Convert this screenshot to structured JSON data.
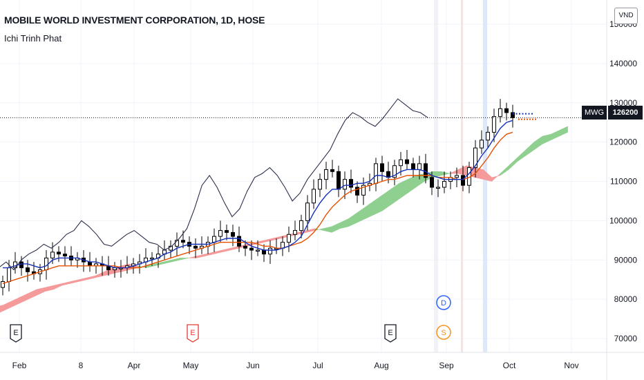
{
  "header": {
    "title": "MOBILE WORLD INVESTMENT CORPORATION, 1D, HOSE",
    "indicator": "Ichi Trinh Phat"
  },
  "currency_button": "VND",
  "price_tag": {
    "symbol": "MWG",
    "price": "126200"
  },
  "colors": {
    "kijun": "#e65100",
    "tenkan": "#1531b8",
    "chikou": "#2a2e4a",
    "cloud_bull": "#8fcf8f",
    "cloud_bear": "#f59a9a",
    "candle": "#000000",
    "event_earnings": "#131722",
    "event_dividend": "#2962ff",
    "event_split": "#f7931a",
    "event_earnings_red": "#e53935"
  },
  "chart_data": {
    "type": "candlestick",
    "title": "MOBILE WORLD INVESTMENT CORPORATION, 1D, HOSE",
    "indicator": "Ichi Trinh Phat",
    "ylim": [
      62000,
      150000
    ],
    "y_ticks": [
      "70000",
      "80000",
      "90000",
      "100000",
      "110000",
      "120000",
      "130000",
      "140000",
      "150000"
    ],
    "x_ticks": [
      "Feb",
      "8",
      "Apr",
      "May",
      "Jun",
      "Jul",
      "Aug",
      "Sep",
      "Oct",
      "Nov"
    ],
    "grid": true,
    "last_price": 126200,
    "close": [
      84500,
      88000,
      89500,
      88000,
      87000,
      86500,
      87500,
      90500,
      92000,
      91500,
      91000,
      90000,
      90500,
      89500,
      88500,
      89000,
      88500,
      87500,
      88000,
      88000,
      88500,
      89000,
      89500,
      90500,
      90500,
      91500,
      92500,
      93500,
      95000,
      94500,
      93500,
      93000,
      93500,
      94500,
      96000,
      97500,
      97000,
      96000,
      93500,
      93000,
      92500,
      92500,
      91500,
      93000,
      93000,
      94500,
      96500,
      97500,
      100000,
      104500,
      108000,
      110500,
      113000,
      112500,
      108000,
      110500,
      108500,
      106500,
      109000,
      109500,
      114500,
      112500,
      111000,
      114000,
      115500,
      114500,
      113000,
      114500,
      111000,
      108500,
      108500,
      110000,
      111000,
      111500,
      109000,
      113500,
      118500,
      120500,
      122500,
      126500,
      128500,
      127500,
      126200
    ],
    "series": [
      {
        "name": "Tenkan",
        "values": [
          88000,
          88000,
          88500,
          89000,
          89000,
          88500,
          88000,
          88500,
          90000,
          90500,
          90500,
          90500,
          90500,
          90000,
          89500,
          89500,
          89000,
          88500,
          88000,
          88000,
          88000,
          88500,
          89000,
          89500,
          90000,
          90500,
          91500,
          92000,
          93000,
          93500,
          94000,
          94000,
          94000,
          94000,
          94500,
          95000,
          95500,
          95500,
          95500,
          94500,
          93500,
          93000,
          92500,
          92500,
          92500,
          93000,
          93500,
          94500,
          96000,
          99000,
          102000,
          104500,
          106500,
          108000,
          108000,
          109000,
          109000,
          109500,
          109500,
          110000,
          111500,
          111500,
          111000,
          111500,
          112500,
          113000,
          113000,
          113000,
          112500,
          111500,
          111000,
          110500,
          110500,
          110500,
          110500,
          112000,
          114000,
          116500,
          118500,
          121000,
          123500,
          125000,
          125500
        ]
      },
      {
        "name": "Kijun",
        "values": [
          84000,
          84500,
          85000,
          85500,
          86000,
          86500,
          87000,
          87500,
          88000,
          88500,
          88500,
          88500,
          88500,
          88500,
          88500,
          88500,
          88500,
          88500,
          88500,
          88000,
          88000,
          88000,
          88000,
          88500,
          89000,
          89500,
          90000,
          90500,
          91000,
          91500,
          92000,
          92500,
          93000,
          93500,
          94000,
          94500,
          94500,
          94500,
          94500,
          94500,
          94500,
          94000,
          93500,
          93500,
          93000,
          93000,
          93500,
          94000,
          94500,
          95500,
          97000,
          99000,
          101500,
          103500,
          105000,
          106500,
          107500,
          108000,
          108500,
          109000,
          109500,
          110000,
          110500,
          110500,
          111000,
          111500,
          111500,
          111500,
          111500,
          111500,
          111000,
          111000,
          111000,
          110500,
          110500,
          111000,
          112000,
          114000,
          116000,
          118500,
          120500,
          122000,
          122500
        ]
      },
      {
        "name": "Chikou",
        "values": [
          88000,
          89500,
          87500,
          90000,
          91500,
          92500,
          94000,
          93000,
          94500,
          96500,
          97500,
          100000,
          98500,
          96500,
          94000,
          93500,
          95000,
          96500,
          97500,
          96000,
          94500,
          94000,
          92500,
          93500,
          95500,
          98000,
          103000,
          109000,
          111500,
          108500,
          104500,
          101000,
          103000,
          107500,
          111000,
          112000,
          113500,
          111500,
          108500,
          105000,
          107000,
          110500,
          113000,
          115500,
          118000,
          122000,
          125500,
          127500,
          126500,
          125000,
          124000,
          126000,
          128500,
          131000,
          129500,
          128000,
          127500,
          126200
        ]
      },
      {
        "name": "Senkou A",
        "values": [
          76000,
          77000,
          78000,
          79000,
          80000,
          81000,
          82000,
          82500,
          83500,
          84000,
          84500,
          85000,
          85500,
          86000,
          86500,
          87000,
          87500,
          88000,
          88500,
          89000,
          89500,
          90000,
          90500,
          90500,
          90500,
          91000,
          91500,
          92000,
          92500,
          93000,
          93500,
          94000,
          94500,
          95000,
          95500,
          96000,
          96500,
          97000,
          97500,
          98000,
          98500,
          99500,
          100500,
          102000,
          103500,
          105000,
          106500,
          108000,
          109500,
          110500,
          111500,
          112000,
          112500,
          112500,
          112000,
          112000,
          111500,
          111000,
          110500,
          110000,
          112000,
          114000,
          116000,
          118000,
          120000,
          121500,
          122000,
          123000,
          124000
        ]
      },
      {
        "name": "Senkou B",
        "values": [
          78000,
          78500,
          79500,
          80500,
          81500,
          82500,
          83000,
          83500,
          84000,
          84500,
          85000,
          85500,
          86000,
          87000,
          88000,
          88500,
          89000,
          88500,
          88000,
          88500,
          89000,
          89500,
          90000,
          90500,
          91000,
          91500,
          92000,
          92500,
          93000,
          93500,
          94000,
          94500,
          95000,
          95500,
          96000,
          96500,
          97000,
          97500,
          98000,
          97500,
          97000,
          98000,
          98500,
          99500,
          100500,
          101500,
          102500,
          104000,
          105500,
          107000,
          108500,
          110000,
          111000,
          111500,
          112000,
          113000,
          114000,
          113500,
          113000,
          111000,
          111500,
          113000,
          115000,
          116500,
          118000,
          119500,
          120500,
          121500,
          122500
        ]
      }
    ],
    "events": [
      "E",
      "E",
      "E",
      "D",
      "S"
    ]
  }
}
